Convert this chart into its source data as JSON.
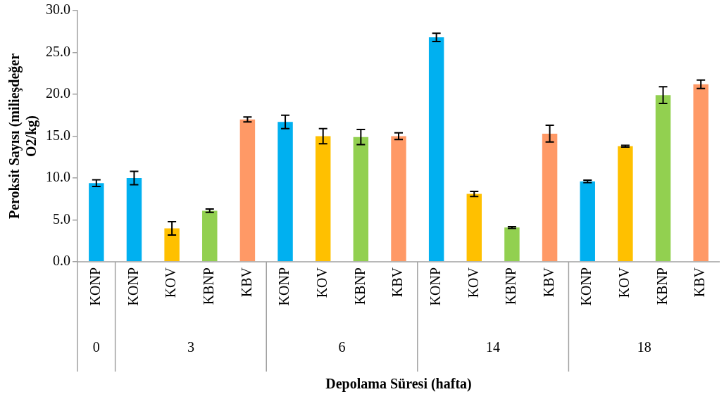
{
  "chart_data": {
    "type": "bar",
    "xlabel": "Depolama Süresi (hafta)",
    "ylabel": "Peroksit Sayısı (milieşdeğer O2/kg)",
    "categories": [
      "KONP",
      "KONP",
      "KOV",
      "KBNP",
      "KBV",
      "KONP",
      "KOV",
      "KBNP",
      "KBV",
      "KONP",
      "KOV",
      "KBNP",
      "KBV",
      "KONP",
      "KOV",
      "KBNP",
      "KBV"
    ],
    "values": [
      9.4,
      10.0,
      4.0,
      6.1,
      17.0,
      16.7,
      15.0,
      14.9,
      15.0,
      26.8,
      8.1,
      4.1,
      15.3,
      9.6,
      13.8,
      19.9,
      21.2
    ],
    "errors": [
      0.4,
      0.8,
      0.8,
      0.2,
      0.3,
      0.8,
      0.9,
      0.9,
      0.4,
      0.5,
      0.3,
      0.1,
      1.0,
      0.15,
      0.1,
      1.0,
      0.5
    ],
    "colors": [
      "#00b0f0",
      "#00b0f0",
      "#ffc000",
      "#92d050",
      "#ff9966",
      "#00b0f0",
      "#ffc000",
      "#92d050",
      "#ff9966",
      "#00b0f0",
      "#ffc000",
      "#92d050",
      "#ff9966",
      "#00b0f0",
      "#ffc000",
      "#92d050",
      "#ff9966"
    ],
    "annotations": [
      "0",
      "3",
      "6",
      "14",
      "18"
    ],
    "ylim": [
      0,
      30
    ],
    "yticks": [
      {
        "value": 0,
        "label": "0.0"
      },
      {
        "value": 5,
        "label": "5.0"
      },
      {
        "value": 10,
        "label": "10.0"
      },
      {
        "value": 15,
        "label": "15.0"
      },
      {
        "value": 20,
        "label": "20.0"
      },
      {
        "value": 25,
        "label": "25.0"
      },
      {
        "value": 30,
        "label": "30.0"
      }
    ],
    "grid": false,
    "legend": false
  }
}
